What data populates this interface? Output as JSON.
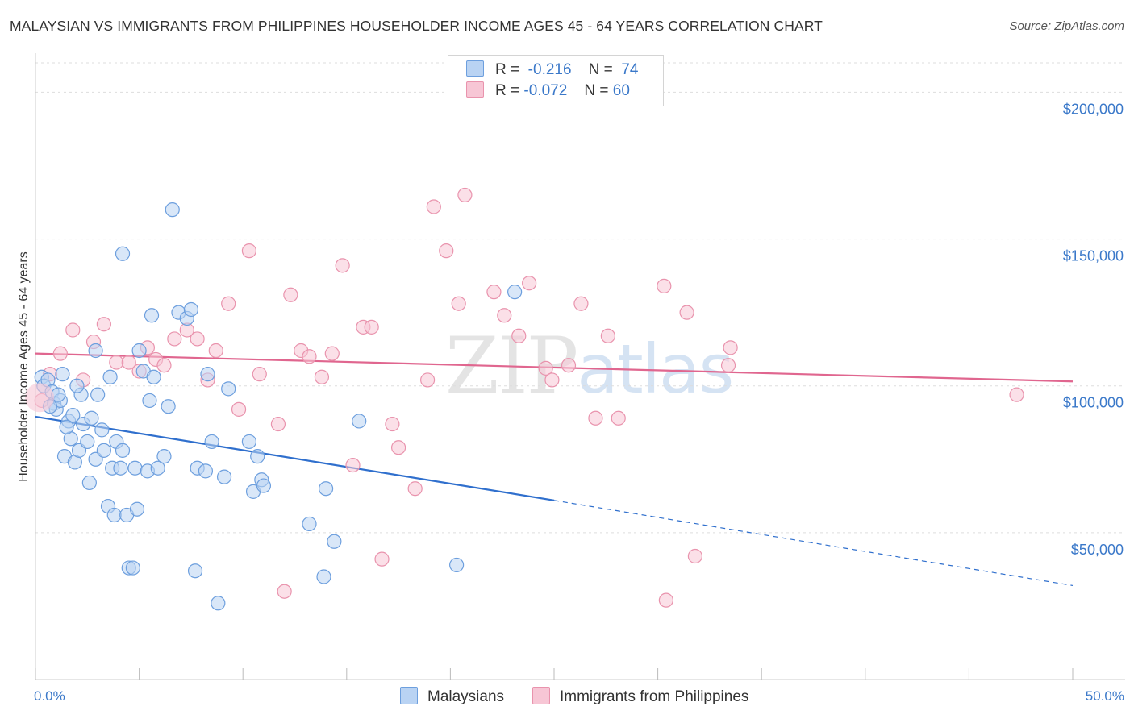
{
  "header": {
    "title": "MALAYSIAN VS IMMIGRANTS FROM PHILIPPINES HOUSEHOLDER INCOME AGES 45 - 64 YEARS CORRELATION CHART",
    "source": "Source: ZipAtlas.com"
  },
  "watermark": {
    "zip": "ZIP",
    "atlas": "atlas"
  },
  "legend": {
    "rows": [
      {
        "r_label": "R =",
        "r_value": "-0.216",
        "n_label": "N =",
        "n_value": "74"
      },
      {
        "r_label": "R =",
        "r_value": "-0.072",
        "n_label": "N =",
        "n_value": "60"
      }
    ]
  },
  "colors": {
    "blue_fill": "#b9d3f3",
    "blue_stroke": "#6d9fde",
    "blue_line": "#2f6fcd",
    "pink_fill": "#f7c6d5",
    "pink_stroke": "#e993ad",
    "pink_line": "#e0668f",
    "tick": "#3a78c9",
    "grid": "#dddddd"
  },
  "chart_data": {
    "type": "scatter",
    "title": "MALAYSIAN VS IMMIGRANTS FROM PHILIPPINES HOUSEHOLDER INCOME AGES 45 - 64 YEARS CORRELATION CHART",
    "xlabel": "",
    "ylabel": "Householder Income Ages 45 - 64 years",
    "xlim": [
      0,
      50
    ],
    "ylim": [
      0,
      210000
    ],
    "x_tick_labels": [
      "0.0%",
      "50.0%"
    ],
    "y_ticks": [
      50000,
      100000,
      150000,
      200000
    ],
    "y_tick_labels": [
      "$50,000",
      "$100,000",
      "$150,000",
      "$200,000"
    ],
    "grid": true,
    "legend_position": "top-center",
    "series": [
      {
        "name": "Malaysians",
        "r": -0.216,
        "n": 74,
        "trend": {
          "x0": 0,
          "y0": 89500,
          "x1": 25,
          "y1": 61000,
          "dashed_to_x": 50,
          "dashed_to_y": 32000
        },
        "points": [
          [
            0.3,
            103000
          ],
          [
            0.4,
            100000
          ],
          [
            0.6,
            102000
          ],
          [
            0.8,
            98000
          ],
          [
            0.9,
            94000
          ],
          [
            1.0,
            92000
          ],
          [
            1.2,
            95000
          ],
          [
            1.3,
            104000
          ],
          [
            1.4,
            76000
          ],
          [
            1.6,
            88000
          ],
          [
            1.7,
            82000
          ],
          [
            1.8,
            90000
          ],
          [
            1.9,
            74000
          ],
          [
            2.1,
            78000
          ],
          [
            2.2,
            97000
          ],
          [
            2.3,
            87000
          ],
          [
            2.5,
            81000
          ],
          [
            2.6,
            67000
          ],
          [
            2.7,
            89000
          ],
          [
            2.9,
            75000
          ],
          [
            3.0,
            97000
          ],
          [
            3.2,
            85000
          ],
          [
            3.3,
            78000
          ],
          [
            3.5,
            59000
          ],
          [
            3.7,
            72000
          ],
          [
            3.8,
            56000
          ],
          [
            3.9,
            81000
          ],
          [
            4.1,
            72000
          ],
          [
            4.2,
            78000
          ],
          [
            4.4,
            56000
          ],
          [
            4.5,
            38000
          ],
          [
            4.7,
            38000
          ],
          [
            4.8,
            72000
          ],
          [
            4.9,
            58000
          ],
          [
            5.0,
            112000
          ],
          [
            5.2,
            105000
          ],
          [
            5.4,
            71000
          ],
          [
            5.5,
            95000
          ],
          [
            5.6,
            124000
          ],
          [
            5.7,
            103000
          ],
          [
            5.9,
            72000
          ],
          [
            6.2,
            76000
          ],
          [
            6.4,
            93000
          ],
          [
            6.6,
            160000
          ],
          [
            6.9,
            125000
          ],
          [
            7.3,
            123000
          ],
          [
            7.5,
            126000
          ],
          [
            7.7,
            37000
          ],
          [
            7.8,
            72000
          ],
          [
            8.2,
            71000
          ],
          [
            8.3,
            104000
          ],
          [
            8.5,
            81000
          ],
          [
            8.8,
            26000
          ],
          [
            9.1,
            69000
          ],
          [
            9.3,
            99000
          ],
          [
            10.3,
            81000
          ],
          [
            10.5,
            64000
          ],
          [
            10.7,
            76000
          ],
          [
            10.9,
            68000
          ],
          [
            11.0,
            66000
          ],
          [
            13.2,
            53000
          ],
          [
            13.9,
            35000
          ],
          [
            14.0,
            65000
          ],
          [
            14.4,
            47000
          ],
          [
            15.6,
            88000
          ],
          [
            20.3,
            39000
          ],
          [
            23.1,
            132000
          ],
          [
            4.2,
            145000
          ],
          [
            2.9,
            112000
          ],
          [
            3.6,
            103000
          ],
          [
            1.1,
            97000
          ],
          [
            0.7,
            93000
          ],
          [
            2.0,
            100000
          ],
          [
            1.5,
            86000
          ]
        ]
      },
      {
        "name": "Immigrants from Philippines",
        "r": -0.072,
        "n": 60,
        "trend": {
          "x0": 0,
          "y0": 111000,
          "x1": 50,
          "y1": 101500
        },
        "points": [
          [
            0.3,
            95000
          ],
          [
            0.7,
            104000
          ],
          [
            1.2,
            111000
          ],
          [
            1.8,
            119000
          ],
          [
            2.3,
            102000
          ],
          [
            2.8,
            115000
          ],
          [
            3.3,
            121000
          ],
          [
            3.9,
            108000
          ],
          [
            4.5,
            108000
          ],
          [
            5.0,
            105000
          ],
          [
            5.4,
            113000
          ],
          [
            5.8,
            109000
          ],
          [
            6.2,
            107000
          ],
          [
            6.7,
            116000
          ],
          [
            7.3,
            119000
          ],
          [
            7.8,
            116000
          ],
          [
            8.3,
            102000
          ],
          [
            8.7,
            112000
          ],
          [
            9.3,
            128000
          ],
          [
            9.8,
            92000
          ],
          [
            10.3,
            146000
          ],
          [
            10.8,
            104000
          ],
          [
            11.7,
            87000
          ],
          [
            12.3,
            131000
          ],
          [
            12.8,
            112000
          ],
          [
            13.2,
            110000
          ],
          [
            13.8,
            103000
          ],
          [
            14.3,
            111000
          ],
          [
            14.8,
            141000
          ],
          [
            15.3,
            73000
          ],
          [
            15.8,
            120000
          ],
          [
            16.2,
            120000
          ],
          [
            16.7,
            41000
          ],
          [
            17.2,
            87000
          ],
          [
            17.5,
            79000
          ],
          [
            18.3,
            65000
          ],
          [
            18.9,
            102000
          ],
          [
            19.2,
            161000
          ],
          [
            19.8,
            146000
          ],
          [
            20.4,
            128000
          ],
          [
            20.7,
            165000
          ],
          [
            22.1,
            132000
          ],
          [
            22.6,
            124000
          ],
          [
            23.3,
            117000
          ],
          [
            23.8,
            135000
          ],
          [
            24.6,
            106000
          ],
          [
            24.9,
            102000
          ],
          [
            25.7,
            107000
          ],
          [
            26.3,
            128000
          ],
          [
            27.0,
            89000
          ],
          [
            27.6,
            117000
          ],
          [
            28.1,
            89000
          ],
          [
            12.0,
            30000
          ],
          [
            30.3,
            134000
          ],
          [
            30.4,
            27000
          ],
          [
            31.4,
            125000
          ],
          [
            31.8,
            42000
          ],
          [
            33.5,
            113000
          ],
          [
            33.4,
            107000
          ],
          [
            47.3,
            97000
          ]
        ]
      }
    ]
  },
  "bottom_legend": {
    "items": [
      {
        "label": "Malaysians"
      },
      {
        "label": "Immigrants from Philippines"
      }
    ]
  }
}
